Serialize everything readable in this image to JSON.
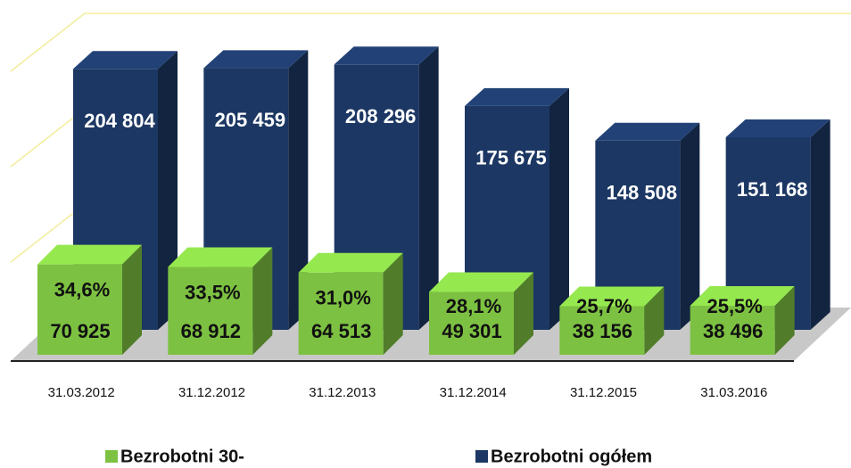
{
  "chart_data": {
    "type": "bar3d",
    "categories": [
      "31.03.2012",
      "31.12.2012",
      "31.12.2013",
      "31.12.2014",
      "31.12.2015",
      "31.03.2016"
    ],
    "series": [
      {
        "name": "Bezrobotni 30-",
        "color": "#7dc142",
        "values": [
          70925,
          68912,
          64513,
          49301,
          38156,
          38496
        ],
        "value_labels": [
          "70 925",
          "68 912",
          "64 513",
          "49 301",
          "38 156",
          "38 496"
        ],
        "share_labels": [
          "34,6%",
          "33,5%",
          "31,0%",
          "28,1%",
          "25,7%",
          "25,5%"
        ]
      },
      {
        "name": "Bezrobotni ogółem",
        "color": "#1c3763",
        "values": [
          204804,
          205459,
          208296,
          175675,
          148508,
          151168
        ],
        "value_labels": [
          "204 804",
          "205 459",
          "208 296",
          "175 675",
          "148 508",
          "151 168"
        ]
      }
    ],
    "ylim": [
      0,
      240000
    ]
  }
}
